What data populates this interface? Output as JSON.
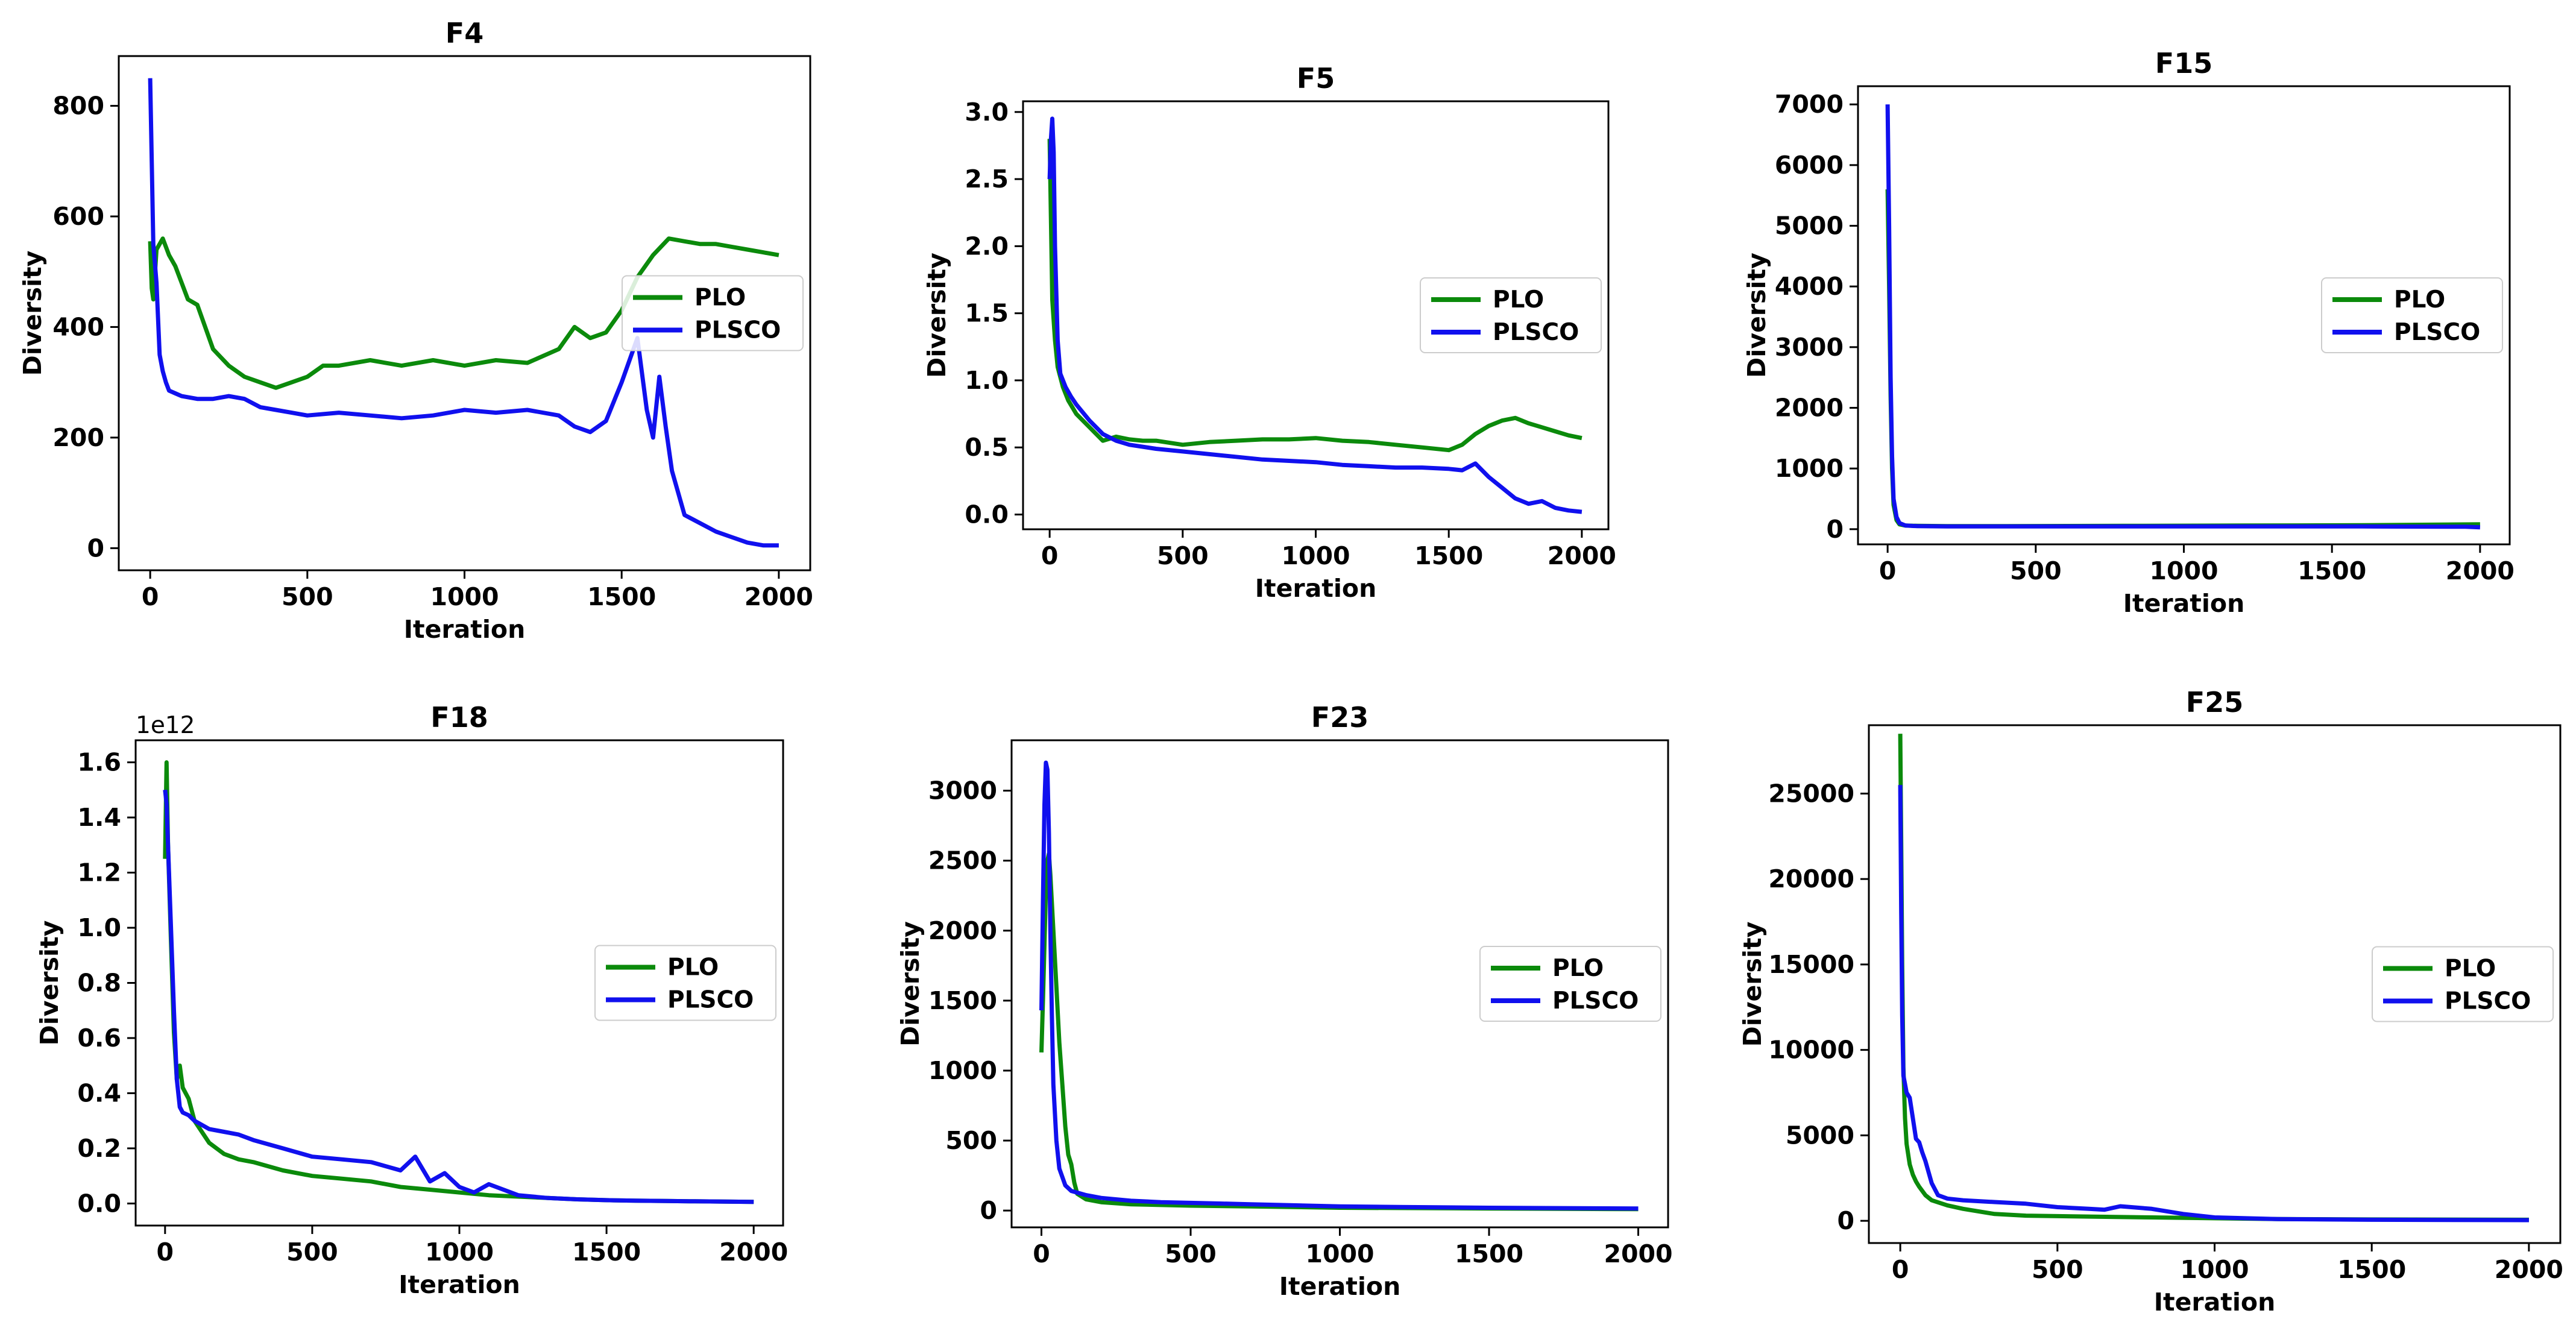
{
  "figure": {
    "legend_labels": [
      "PLO",
      "PLSCO"
    ],
    "colors": {
      "PLO": "#0b8a0b",
      "PLSCO": "#1010ee"
    }
  },
  "chart_data": [
    {
      "type": "line",
      "title": "F4",
      "xlabel": "Iteration",
      "ylabel": "Diversity",
      "xlim": [
        -100,
        2100
      ],
      "ylim": [
        -40,
        890
      ],
      "xticks": [
        0,
        500,
        1000,
        1500,
        2000
      ],
      "yticks": [
        0,
        200,
        400,
        600,
        800
      ],
      "ytick_labels": [
        "0",
        "200",
        "400",
        "600",
        "800"
      ],
      "legend_position": "center-right",
      "y_offset_label": "",
      "series": [
        {
          "name": "PLO",
          "x": [
            0,
            5,
            10,
            20,
            40,
            60,
            80,
            100,
            120,
            150,
            200,
            250,
            300,
            350,
            400,
            450,
            500,
            550,
            600,
            700,
            800,
            900,
            1000,
            1100,
            1200,
            1300,
            1350,
            1400,
            1450,
            1500,
            1550,
            1600,
            1650,
            1700,
            1750,
            1800,
            1850,
            1900,
            1950,
            2000
          ],
          "y": [
            555,
            470,
            450,
            540,
            560,
            530,
            510,
            480,
            450,
            440,
            360,
            330,
            310,
            300,
            290,
            300,
            310,
            330,
            330,
            340,
            330,
            340,
            330,
            340,
            335,
            360,
            400,
            380,
            390,
            430,
            490,
            530,
            560,
            555,
            550,
            550,
            545,
            540,
            535,
            530
          ]
        },
        {
          "name": "PLSCO",
          "x": [
            0,
            5,
            10,
            20,
            30,
            40,
            50,
            60,
            80,
            100,
            150,
            200,
            250,
            300,
            350,
            400,
            450,
            500,
            600,
            700,
            800,
            900,
            1000,
            1100,
            1200,
            1300,
            1350,
            1400,
            1450,
            1500,
            1550,
            1580,
            1600,
            1620,
            1640,
            1660,
            1700,
            1750,
            1800,
            1850,
            1900,
            1950,
            2000
          ],
          "y": [
            850,
            700,
            550,
            480,
            350,
            320,
            300,
            285,
            280,
            275,
            270,
            270,
            275,
            270,
            255,
            250,
            245,
            240,
            245,
            240,
            235,
            240,
            250,
            245,
            250,
            240,
            220,
            210,
            230,
            300,
            380,
            250,
            200,
            310,
            220,
            140,
            60,
            45,
            30,
            20,
            10,
            5,
            5
          ]
        }
      ]
    },
    {
      "type": "line",
      "title": "F5",
      "xlabel": "Iteration",
      "ylabel": "Diversity",
      "xlim": [
        -100,
        2100
      ],
      "ylim": [
        -0.11,
        3.08
      ],
      "xticks": [
        0,
        500,
        1000,
        1500,
        2000
      ],
      "yticks": [
        0.0,
        0.5,
        1.0,
        1.5,
        2.0,
        2.5,
        3.0
      ],
      "ytick_labels": [
        "0.0",
        "0.5",
        "1.0",
        "1.5",
        "2.0",
        "2.5",
        "3.0"
      ],
      "legend_position": "center-right",
      "y_offset_label": "",
      "series": [
        {
          "name": "PLO",
          "x": [
            0,
            5,
            10,
            20,
            30,
            50,
            70,
            100,
            150,
            200,
            250,
            300,
            350,
            400,
            500,
            600,
            700,
            800,
            900,
            1000,
            1100,
            1200,
            1300,
            1400,
            1500,
            1550,
            1600,
            1650,
            1700,
            1750,
            1800,
            1850,
            1900,
            1950,
            2000
          ],
          "y": [
            2.8,
            2.2,
            1.6,
            1.3,
            1.1,
            0.95,
            0.85,
            0.75,
            0.65,
            0.55,
            0.58,
            0.56,
            0.55,
            0.55,
            0.52,
            0.54,
            0.55,
            0.56,
            0.56,
            0.57,
            0.55,
            0.54,
            0.52,
            0.5,
            0.48,
            0.52,
            0.6,
            0.66,
            0.7,
            0.72,
            0.68,
            0.65,
            0.62,
            0.59,
            0.57
          ]
        },
        {
          "name": "PLSCO",
          "x": [
            0,
            5,
            10,
            15,
            20,
            30,
            40,
            60,
            80,
            100,
            150,
            200,
            250,
            300,
            400,
            500,
            600,
            700,
            800,
            900,
            1000,
            1100,
            1200,
            1300,
            1400,
            1500,
            1550,
            1600,
            1650,
            1700,
            1750,
            1800,
            1850,
            1900,
            1950,
            2000
          ],
          "y": [
            2.5,
            2.8,
            2.95,
            2.7,
            2.0,
            1.3,
            1.05,
            0.95,
            0.88,
            0.82,
            0.7,
            0.6,
            0.55,
            0.52,
            0.49,
            0.47,
            0.45,
            0.43,
            0.41,
            0.4,
            0.39,
            0.37,
            0.36,
            0.35,
            0.35,
            0.34,
            0.33,
            0.38,
            0.28,
            0.2,
            0.12,
            0.08,
            0.1,
            0.05,
            0.03,
            0.02
          ]
        }
      ]
    },
    {
      "type": "line",
      "title": "F15",
      "xlabel": "Iteration",
      "ylabel": "Diversity",
      "xlim": [
        -100,
        2100
      ],
      "ylim": [
        -250,
        7300
      ],
      "xticks": [
        0,
        500,
        1000,
        1500,
        2000
      ],
      "yticks": [
        0,
        1000,
        2000,
        3000,
        4000,
        5000,
        6000,
        7000
      ],
      "ytick_labels": [
        "0",
        "1000",
        "2000",
        "3000",
        "4000",
        "5000",
        "6000",
        "7000"
      ],
      "legend_position": "center-right",
      "y_offset_label": "",
      "series": [
        {
          "name": "PLO",
          "x": [
            0,
            5,
            10,
            15,
            20,
            30,
            40,
            60,
            100,
            200,
            400,
            800,
            1200,
            1600,
            2000
          ],
          "y": [
            5600,
            4000,
            2200,
            1000,
            400,
            150,
            80,
            60,
            55,
            50,
            50,
            55,
            60,
            65,
            80
          ]
        },
        {
          "name": "PLSCO",
          "x": [
            0,
            5,
            10,
            15,
            20,
            30,
            40,
            60,
            100,
            200,
            400,
            800,
            1200,
            1600,
            1950,
            2000
          ],
          "y": [
            7000,
            5000,
            2500,
            1200,
            500,
            200,
            100,
            60,
            50,
            45,
            45,
            45,
            45,
            45,
            40,
            30
          ]
        }
      ]
    },
    {
      "type": "line",
      "title": "F18",
      "xlabel": "Iteration",
      "ylabel": "Diversity",
      "xlim": [
        -100,
        2100
      ],
      "ylim": [
        -0.08,
        1.68
      ],
      "xticks": [
        0,
        500,
        1000,
        1500,
        2000
      ],
      "yticks": [
        0.0,
        0.2,
        0.4,
        0.6,
        0.8,
        1.0,
        1.2,
        1.4,
        1.6
      ],
      "ytick_labels": [
        "0.0",
        "0.2",
        "0.4",
        "0.6",
        "0.8",
        "1.0",
        "1.2",
        "1.4",
        "1.6"
      ],
      "legend_position": "center-right",
      "y_offset_label": "1e12",
      "series": [
        {
          "name": "PLO",
          "x": [
            0,
            5,
            10,
            20,
            30,
            40,
            50,
            60,
            80,
            100,
            150,
            200,
            250,
            300,
            400,
            500,
            600,
            700,
            800,
            900,
            1000,
            1100,
            1200,
            1300,
            1400,
            1500,
            1600,
            1700,
            1800,
            1900,
            2000
          ],
          "y": [
            1.25,
            1.6,
            1.3,
            0.95,
            0.62,
            0.45,
            0.5,
            0.42,
            0.38,
            0.3,
            0.22,
            0.18,
            0.16,
            0.15,
            0.12,
            0.1,
            0.09,
            0.08,
            0.06,
            0.05,
            0.04,
            0.03,
            0.025,
            0.02,
            0.015,
            0.012,
            0.01,
            0.009,
            0.008,
            0.007,
            0.006
          ]
        },
        {
          "name": "PLSCO",
          "x": [
            0,
            5,
            10,
            20,
            30,
            40,
            50,
            60,
            80,
            100,
            150,
            200,
            250,
            300,
            400,
            500,
            600,
            700,
            800,
            850,
            900,
            950,
            1000,
            1050,
            1100,
            1150,
            1200,
            1300,
            1400,
            1500,
            1600,
            1700,
            1800,
            1900,
            2000
          ],
          "y": [
            1.5,
            1.45,
            1.3,
            1.0,
            0.7,
            0.45,
            0.35,
            0.33,
            0.32,
            0.3,
            0.27,
            0.26,
            0.25,
            0.23,
            0.2,
            0.17,
            0.16,
            0.15,
            0.12,
            0.17,
            0.08,
            0.11,
            0.06,
            0.04,
            0.07,
            0.05,
            0.03,
            0.02,
            0.015,
            0.012,
            0.01,
            0.009,
            0.008,
            0.007,
            0.006
          ]
        }
      ]
    },
    {
      "type": "line",
      "title": "F23",
      "xlabel": "Iteration",
      "ylabel": "Diversity",
      "xlim": [
        -100,
        2100
      ],
      "ylim": [
        -120,
        3360
      ],
      "xticks": [
        0,
        500,
        1000,
        1500,
        2000
      ],
      "yticks": [
        0,
        500,
        1000,
        1500,
        2000,
        2500,
        3000
      ],
      "ytick_labels": [
        "0",
        "500",
        "1000",
        "1500",
        "2000",
        "2500",
        "3000"
      ],
      "legend_position": "center-right",
      "y_offset_label": "",
      "series": [
        {
          "name": "PLO",
          "x": [
            0,
            5,
            10,
            15,
            20,
            25,
            30,
            40,
            50,
            60,
            70,
            80,
            90,
            100,
            110,
            120,
            150,
            200,
            300,
            400,
            500,
            700,
            1000,
            1500,
            2000
          ],
          "y": [
            1130,
            1500,
            1900,
            2300,
            2500,
            2550,
            2400,
            2000,
            1600,
            1200,
            900,
            600,
            400,
            330,
            200,
            120,
            80,
            60,
            45,
            40,
            35,
            30,
            20,
            15,
            10
          ]
        },
        {
          "name": "PLSCO",
          "x": [
            0,
            5,
            10,
            15,
            20,
            25,
            30,
            35,
            40,
            50,
            60,
            80,
            100,
            150,
            200,
            300,
            400,
            500,
            600,
            700,
            800,
            1000,
            1200,
            1500,
            2000
          ],
          "y": [
            1430,
            2200,
            2900,
            3200,
            3150,
            2700,
            2000,
            1400,
            900,
            500,
            300,
            180,
            140,
            110,
            90,
            70,
            60,
            55,
            50,
            45,
            40,
            30,
            25,
            20,
            15
          ]
        }
      ]
    },
    {
      "type": "line",
      "title": "F25",
      "xlabel": "Iteration",
      "ylabel": "Diversity",
      "xlim": [
        -100,
        2100
      ],
      "ylim": [
        -1300,
        29000
      ],
      "xticks": [
        0,
        500,
        1000,
        1500,
        2000
      ],
      "yticks": [
        0,
        5000,
        10000,
        15000,
        20000,
        25000
      ],
      "ytick_labels": [
        "0",
        "5000",
        "10000",
        "15000",
        "20000",
        "25000"
      ],
      "legend_position": "center-right",
      "y_offset_label": "",
      "series": [
        {
          "name": "PLO",
          "x": [
            0,
            3,
            6,
            10,
            15,
            20,
            30,
            40,
            50,
            60,
            80,
            100,
            150,
            200,
            300,
            400,
            600,
            800,
            1000,
            1200,
            1500,
            2000
          ],
          "y": [
            28500,
            22000,
            15000,
            9000,
            6000,
            4500,
            3300,
            2700,
            2300,
            2000,
            1500,
            1200,
            900,
            700,
            400,
            300,
            250,
            200,
            150,
            100,
            80,
            60
          ]
        },
        {
          "name": "PLSCO",
          "x": [
            0,
            3,
            6,
            10,
            15,
            20,
            30,
            40,
            50,
            60,
            70,
            80,
            100,
            120,
            150,
            200,
            300,
            400,
            500,
            600,
            650,
            700,
            800,
            900,
            1000,
            1200,
            1500,
            2000
          ],
          "y": [
            25500,
            18000,
            12000,
            8500,
            8000,
            7500,
            7200,
            6000,
            4800,
            4600,
            4000,
            3500,
            2200,
            1500,
            1300,
            1200,
            1100,
            1000,
            800,
            700,
            650,
            850,
            700,
            400,
            200,
            100,
            60,
            40
          ]
        }
      ]
    }
  ]
}
